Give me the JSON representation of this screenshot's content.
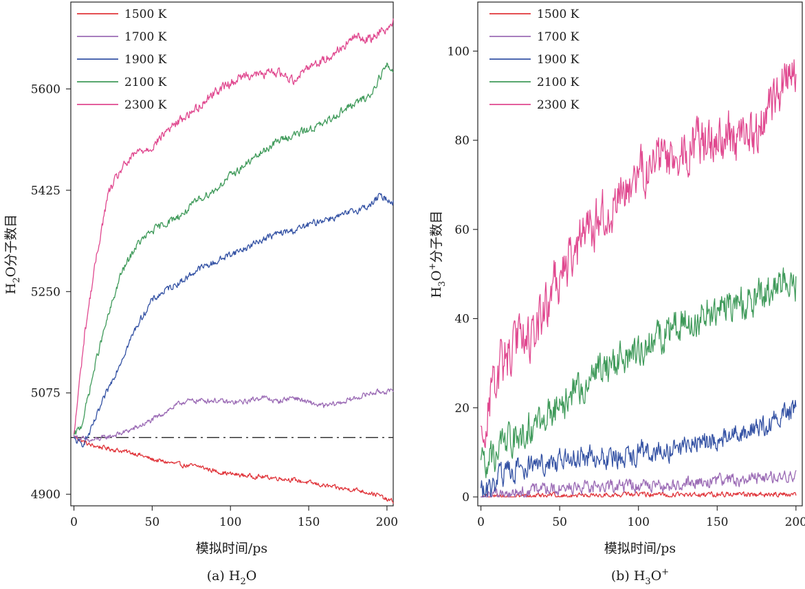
{
  "colors": {
    "1500 K": "#e0343a",
    "1700 K": "#9b6bb5",
    "1900 K": "#3452a4",
    "2100 K": "#3f9a5a",
    "2300 K": "#e0488f",
    "baseline": "#222222"
  },
  "chart_data": [
    {
      "type": "line",
      "panel": "a",
      "caption_prefix": "(a) H",
      "caption_sub": "2",
      "caption_suffix": "O",
      "ylabel_prefix": "H",
      "ylabel_sub": "2",
      "ylabel_suffix": "O分子数目",
      "xlabel": "模拟时间/ps",
      "xlim": [
        -2,
        204
      ],
      "ylim": [
        4880,
        5750
      ],
      "xticks": [
        0,
        50,
        100,
        150,
        200
      ],
      "yticks": [
        4900,
        5075,
        5250,
        5425,
        5600
      ],
      "legend_position": "top-left",
      "baseline": {
        "y": 4998,
        "style": "dash-dot"
      },
      "series": [
        {
          "name": "1500 K",
          "x": [
            0,
            10,
            20,
            30,
            40,
            50,
            60,
            70,
            80,
            90,
            100,
            110,
            120,
            130,
            140,
            150,
            160,
            170,
            180,
            190,
            195,
            200,
            204
          ],
          "y": [
            5000,
            4985,
            4980,
            4975,
            4970,
            4960,
            4955,
            4950,
            4948,
            4940,
            4935,
            4932,
            4930,
            4928,
            4925,
            4920,
            4915,
            4910,
            4908,
            4902,
            4898,
            4890,
            4888
          ],
          "noise": 6
        },
        {
          "name": "1700 K",
          "x": [
            0,
            10,
            20,
            30,
            40,
            50,
            60,
            70,
            80,
            90,
            100,
            110,
            120,
            130,
            140,
            150,
            160,
            170,
            180,
            190,
            200,
            204
          ],
          "y": [
            5000,
            4992,
            4998,
            5005,
            5015,
            5028,
            5045,
            5060,
            5062,
            5062,
            5058,
            5060,
            5068,
            5060,
            5068,
            5058,
            5052,
            5058,
            5066,
            5075,
            5078,
            5076
          ],
          "noise": 7
        },
        {
          "name": "1900 K",
          "x": [
            0,
            5,
            10,
            20,
            30,
            40,
            50,
            60,
            70,
            80,
            90,
            100,
            110,
            120,
            130,
            140,
            150,
            160,
            170,
            180,
            190,
            195,
            200,
            204
          ],
          "y": [
            4995,
            4985,
            5005,
            5070,
            5130,
            5190,
            5235,
            5255,
            5270,
            5290,
            5300,
            5315,
            5325,
            5340,
            5350,
            5355,
            5365,
            5375,
            5380,
            5390,
            5400,
            5415,
            5410,
            5405
          ],
          "noise": 9
        },
        {
          "name": "2100 K",
          "x": [
            0,
            5,
            10,
            15,
            20,
            30,
            40,
            50,
            60,
            70,
            80,
            90,
            100,
            110,
            120,
            130,
            140,
            150,
            160,
            170,
            180,
            190,
            195,
            200,
            204
          ],
          "y": [
            5000,
            5020,
            5080,
            5140,
            5190,
            5280,
            5330,
            5355,
            5370,
            5385,
            5410,
            5425,
            5450,
            5470,
            5490,
            5510,
            5520,
            5530,
            5540,
            5560,
            5575,
            5590,
            5620,
            5640,
            5630
          ],
          "noise": 10
        },
        {
          "name": "2300 K",
          "x": [
            0,
            3,
            7,
            12,
            17,
            22,
            30,
            40,
            50,
            60,
            70,
            80,
            90,
            100,
            110,
            120,
            130,
            140,
            150,
            160,
            170,
            180,
            190,
            195,
            200,
            204
          ],
          "y": [
            5000,
            5080,
            5180,
            5270,
            5350,
            5420,
            5460,
            5490,
            5500,
            5530,
            5550,
            5570,
            5595,
            5610,
            5625,
            5625,
            5630,
            5615,
            5640,
            5650,
            5670,
            5690,
            5685,
            5700,
            5705,
            5715
          ],
          "noise": 12
        }
      ]
    },
    {
      "type": "line",
      "panel": "b",
      "caption_prefix": "(b) H",
      "caption_sub": "3",
      "caption_suffix": "O",
      "caption_sup": "+",
      "ylabel_prefix": "H",
      "ylabel_sub": "3",
      "ylabel_suffix": "O",
      "ylabel_sup": "+",
      "ylabel_tail": "分子数目",
      "xlabel": "模拟时间/ps",
      "xlim": [
        -2,
        204
      ],
      "ylim": [
        -2,
        111
      ],
      "xticks": [
        0,
        50,
        100,
        150,
        200
      ],
      "yticks": [
        0,
        20,
        40,
        60,
        80,
        100
      ],
      "legend_position": "top-left",
      "series": [
        {
          "name": "1500 K",
          "x": [
            0,
            50,
            100,
            150,
            200
          ],
          "y": [
            0,
            0.3,
            0.5,
            0.5,
            0.6
          ],
          "noise": 0.9,
          "floor": 0
        },
        {
          "name": "1700 K",
          "x": [
            0,
            20,
            50,
            100,
            150,
            200
          ],
          "y": [
            0,
            1,
            2,
            2.5,
            3.5,
            5
          ],
          "noise": 2.2,
          "floor": 0
        },
        {
          "name": "1900 K",
          "x": [
            0,
            5,
            10,
            20,
            30,
            50,
            75,
            100,
            125,
            150,
            175,
            200
          ],
          "y": [
            2,
            1,
            4,
            6,
            7,
            8,
            9,
            10,
            11,
            13,
            15,
            20
          ],
          "noise": 4,
          "floor": 0
        },
        {
          "name": "2100 K",
          "x": [
            0,
            10,
            20,
            30,
            50,
            75,
            100,
            125,
            150,
            175,
            200
          ],
          "y": [
            8,
            10,
            13,
            15,
            20,
            28,
            33,
            38,
            42,
            45,
            48
          ],
          "noise": 6,
          "floor": 0
        },
        {
          "name": "2300 K",
          "x": [
            0,
            5,
            10,
            20,
            30,
            40,
            50,
            75,
            100,
            125,
            150,
            175,
            200
          ],
          "y": [
            15,
            22,
            28,
            33,
            37,
            41,
            50,
            62,
            72,
            78,
            80,
            82,
            96
          ],
          "noise": 9,
          "floor": 0
        }
      ]
    }
  ]
}
